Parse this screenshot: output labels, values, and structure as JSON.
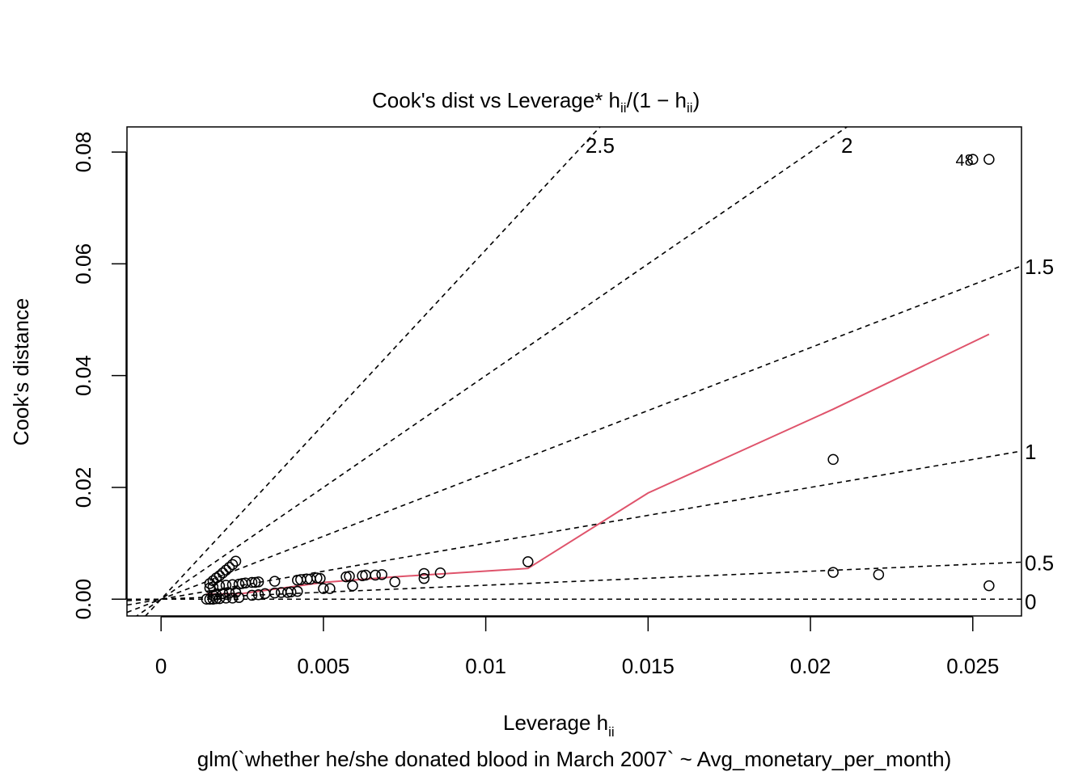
{
  "chart_data": {
    "type": "scatter",
    "title": "Cook's dist vs Leverage* h",
    "title_sub": "ii",
    "title_frac": "/(1 − h",
    "title_sub2": "ii",
    "title_close": ")",
    "xlabel": "Leverage  h",
    "xlabel_sub": "ii",
    "ylabel": "Cook's distance",
    "caption": "glm(`whether he/she donated blood in March 2007` ~ Avg_monetary_per_month)",
    "xlim": [
      -0.00105,
      0.0265
    ],
    "ylim": [
      -0.003,
      0.0845
    ],
    "x_ticks": [
      0,
      0.005,
      0.01,
      0.015,
      0.02,
      0.025
    ],
    "x_tick_labels": [
      "0",
      "0.005",
      "0.01",
      "0.015",
      "0.02",
      "0.025"
    ],
    "y_ticks": [
      0,
      0.02,
      0.04,
      0.06,
      0.08
    ],
    "y_tick_labels": [
      "0.00",
      "0.02",
      "0.04",
      "0.06",
      "0.08"
    ],
    "contours": [
      {
        "label": "0",
        "slope": 0
      },
      {
        "label": "0.5",
        "slope": 0.25
      },
      {
        "label": "1",
        "slope": 1.0
      },
      {
        "label": "1.5",
        "slope": 2.25
      },
      {
        "label": "2",
        "slope": 4.0
      },
      {
        "label": "2.5",
        "slope": 6.25
      }
    ],
    "points": [
      {
        "x": 0.0255,
        "y": 0.0787
      },
      {
        "x": 0.025,
        "y": 0.0787
      },
      {
        "x": 0.0255,
        "y": 0.0024
      },
      {
        "x": 0.0221,
        "y": 0.0044
      },
      {
        "x": 0.0207,
        "y": 0.025
      },
      {
        "x": 0.0207,
        "y": 0.0048
      },
      {
        "x": 0.0113,
        "y": 0.0067
      },
      {
        "x": 0.0086,
        "y": 0.0047
      },
      {
        "x": 0.0081,
        "y": 0.0046
      },
      {
        "x": 0.0081,
        "y": 0.0037
      },
      {
        "x": 0.0072,
        "y": 0.0031
      },
      {
        "x": 0.0068,
        "y": 0.0044
      },
      {
        "x": 0.0066,
        "y": 0.0043
      },
      {
        "x": 0.0063,
        "y": 0.0043
      },
      {
        "x": 0.0062,
        "y": 0.0042
      },
      {
        "x": 0.0058,
        "y": 0.0041
      },
      {
        "x": 0.0057,
        "y": 0.004
      },
      {
        "x": 0.0059,
        "y": 0.0024
      },
      {
        "x": 0.0052,
        "y": 0.0019
      },
      {
        "x": 0.005,
        "y": 0.0019
      },
      {
        "x": 0.0049,
        "y": 0.0037
      },
      {
        "x": 0.0048,
        "y": 0.0038
      },
      {
        "x": 0.0046,
        "y": 0.0036
      },
      {
        "x": 0.0045,
        "y": 0.0036
      },
      {
        "x": 0.0043,
        "y": 0.0035
      },
      {
        "x": 0.0042,
        "y": 0.0034
      },
      {
        "x": 0.0042,
        "y": 0.0014
      },
      {
        "x": 0.004,
        "y": 0.0013
      },
      {
        "x": 0.0039,
        "y": 0.0012
      },
      {
        "x": 0.0037,
        "y": 0.0012
      },
      {
        "x": 0.0035,
        "y": 0.0011
      },
      {
        "x": 0.0035,
        "y": 0.0032
      },
      {
        "x": 0.003,
        "y": 0.0031
      },
      {
        "x": 0.0029,
        "y": 0.003
      },
      {
        "x": 0.0028,
        "y": 0.003
      },
      {
        "x": 0.0032,
        "y": 0.001
      },
      {
        "x": 0.003,
        "y": 0.0008
      },
      {
        "x": 0.0028,
        "y": 0.0007
      },
      {
        "x": 0.0026,
        "y": 0.0029
      },
      {
        "x": 0.0025,
        "y": 0.0028
      },
      {
        "x": 0.0024,
        "y": 0.0027
      },
      {
        "x": 0.0023,
        "y": 0.0068
      },
      {
        "x": 0.0022,
        "y": 0.0062
      },
      {
        "x": 0.0021,
        "y": 0.0057
      },
      {
        "x": 0.002,
        "y": 0.0052
      },
      {
        "x": 0.0019,
        "y": 0.0047
      },
      {
        "x": 0.0018,
        "y": 0.0042
      },
      {
        "x": 0.0017,
        "y": 0.0038
      },
      {
        "x": 0.0016,
        "y": 0.0033
      },
      {
        "x": 0.0015,
        "y": 0.0028
      },
      {
        "x": 0.0022,
        "y": 0.0026
      },
      {
        "x": 0.002,
        "y": 0.0025
      },
      {
        "x": 0.0018,
        "y": 0.0024
      },
      {
        "x": 0.0016,
        "y": 0.0022
      },
      {
        "x": 0.0015,
        "y": 0.002
      },
      {
        "x": 0.0024,
        "y": 0.0003
      },
      {
        "x": 0.0022,
        "y": 0.0002
      },
      {
        "x": 0.002,
        "y": 0.0002
      },
      {
        "x": 0.0018,
        "y": 0.0001
      },
      {
        "x": 0.0017,
        "y": 0.0001
      },
      {
        "x": 0.0016,
        "y": 0.0
      },
      {
        "x": 0.0015,
        "y": 0.0
      },
      {
        "x": 0.0014,
        "y": 0.0
      },
      {
        "x": 0.0023,
        "y": 0.0012
      },
      {
        "x": 0.0021,
        "y": 0.0011
      },
      {
        "x": 0.0019,
        "y": 0.001
      },
      {
        "x": 0.0017,
        "y": 0.0008
      },
      {
        "x": 0.0016,
        "y": 0.0007
      }
    ],
    "point_labels": [
      {
        "text": "48",
        "x": 0.025,
        "y": 0.0787
      }
    ],
    "smooth": {
      "color": "#DF536B",
      "x": [
        0.0014,
        0.0025,
        0.005,
        0.0072,
        0.0113,
        0.015,
        0.0207,
        0.0255
      ],
      "y": [
        0.0009,
        0.001,
        0.003,
        0.004,
        0.0055,
        0.019,
        0.034,
        0.0474
      ]
    }
  }
}
